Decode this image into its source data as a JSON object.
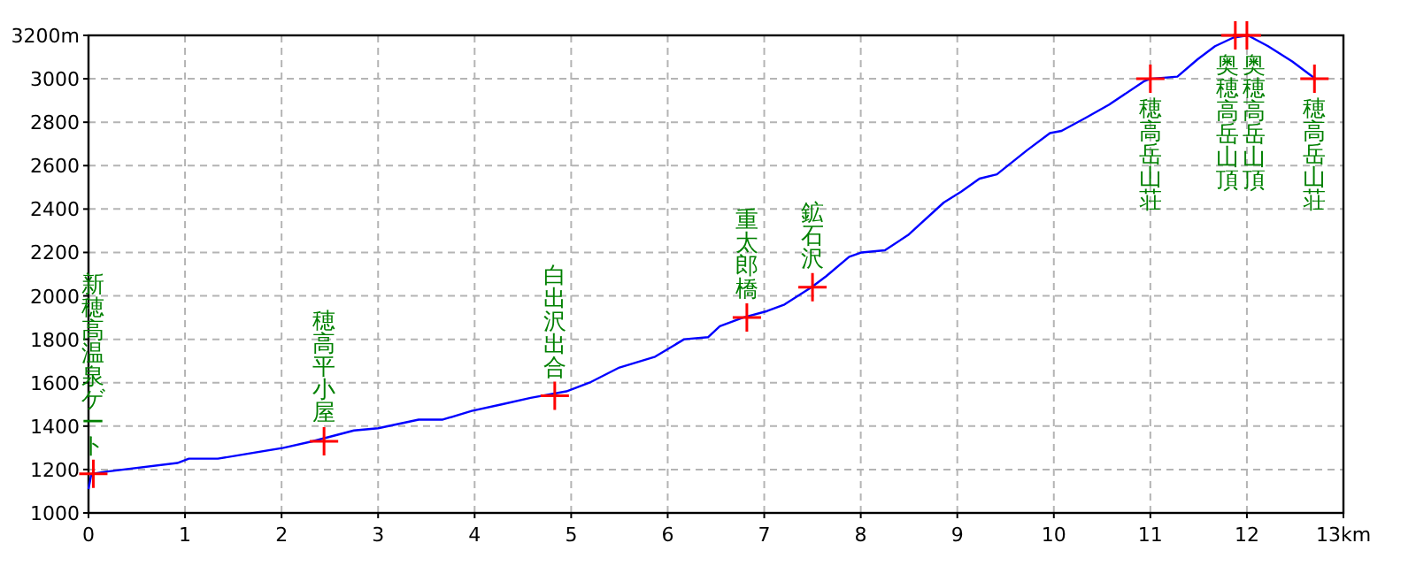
{
  "chart_data": {
    "type": "line",
    "series": [
      {
        "type": "line",
        "color": "#0000ff",
        "x": [
          0,
          0.03,
          0.18,
          0.92,
          1.04,
          1.34,
          2.02,
          2.32,
          2.75,
          3.0,
          3.42,
          3.67,
          3.97,
          4.28,
          4.58,
          4.95,
          5.19,
          5.5,
          5.87,
          6.17,
          6.42,
          6.54,
          6.78,
          7.03,
          7.21,
          7.49,
          7.64,
          7.88,
          8.01,
          8.25,
          8.49,
          8.86,
          9.04,
          9.23,
          9.41,
          9.72,
          9.96,
          10.08,
          10.33,
          10.57,
          10.94,
          11.0,
          11.28,
          11.49,
          11.67,
          11.86,
          12.01,
          12.22,
          12.47,
          12.65,
          12.71
        ],
        "values": [
          1110,
          1180,
          1190,
          1230,
          1250,
          1250,
          1300,
          1330,
          1380,
          1390,
          1430,
          1430,
          1470,
          1500,
          1530,
          1560,
          1600,
          1670,
          1720,
          1800,
          1810,
          1860,
          1900,
          1930,
          1960,
          2040,
          2090,
          2180,
          2200,
          2210,
          2280,
          2430,
          2480,
          2540,
          2560,
          2670,
          2750,
          2760,
          2820,
          2880,
          2990,
          3000,
          3010,
          3090,
          3150,
          3190,
          3200,
          3150,
          3080,
          3020,
          3000
        ]
      },
      {
        "type": "scatter",
        "color": "#ff0000",
        "marker": "cross",
        "x": [
          0.05,
          2.44,
          4.83,
          6.82,
          7.5,
          11.0,
          11.88,
          12.0,
          12.7
        ],
        "values": [
          1180,
          1330,
          1540,
          1900,
          2040,
          3000,
          3200,
          3200,
          3000
        ]
      }
    ],
    "xlim": [
      0,
      13
    ],
    "ylim": [
      1000,
      3200
    ],
    "xticks": [
      0,
      1,
      2,
      3,
      4,
      5,
      6,
      7,
      8,
      9,
      10,
      11,
      12,
      {
        "value": 13,
        "label": "13km"
      }
    ],
    "yticks": [
      1000,
      1200,
      1400,
      1600,
      1800,
      2000,
      2200,
      2400,
      2600,
      2800,
      3000,
      {
        "value": 3200,
        "label": "3200m"
      }
    ],
    "grid": true,
    "annotations": [
      {
        "text": "新穂高温泉ゲート",
        "x": 0.05,
        "y": 1180
      },
      {
        "text": "穂高平小屋",
        "x": 2.44,
        "y": 1330
      },
      {
        "text": "白出沢出合",
        "x": 4.83,
        "y": 1540
      },
      {
        "text": "重太郎橋",
        "x": 6.82,
        "y": 1900
      },
      {
        "text": "鉱石沢",
        "x": 7.5,
        "y": 2040
      },
      {
        "text": "穂高岳山荘",
        "x": 11.0,
        "y": 3000
      },
      {
        "text": "奥穂高岳山頂",
        "x": 11.88,
        "y": 3200
      },
      {
        "text": "奥穂高岳山頂",
        "x": 12.0,
        "y": 3200
      },
      {
        "text": "穂高岳山荘",
        "x": 12.7,
        "y": 3000
      }
    ]
  }
}
